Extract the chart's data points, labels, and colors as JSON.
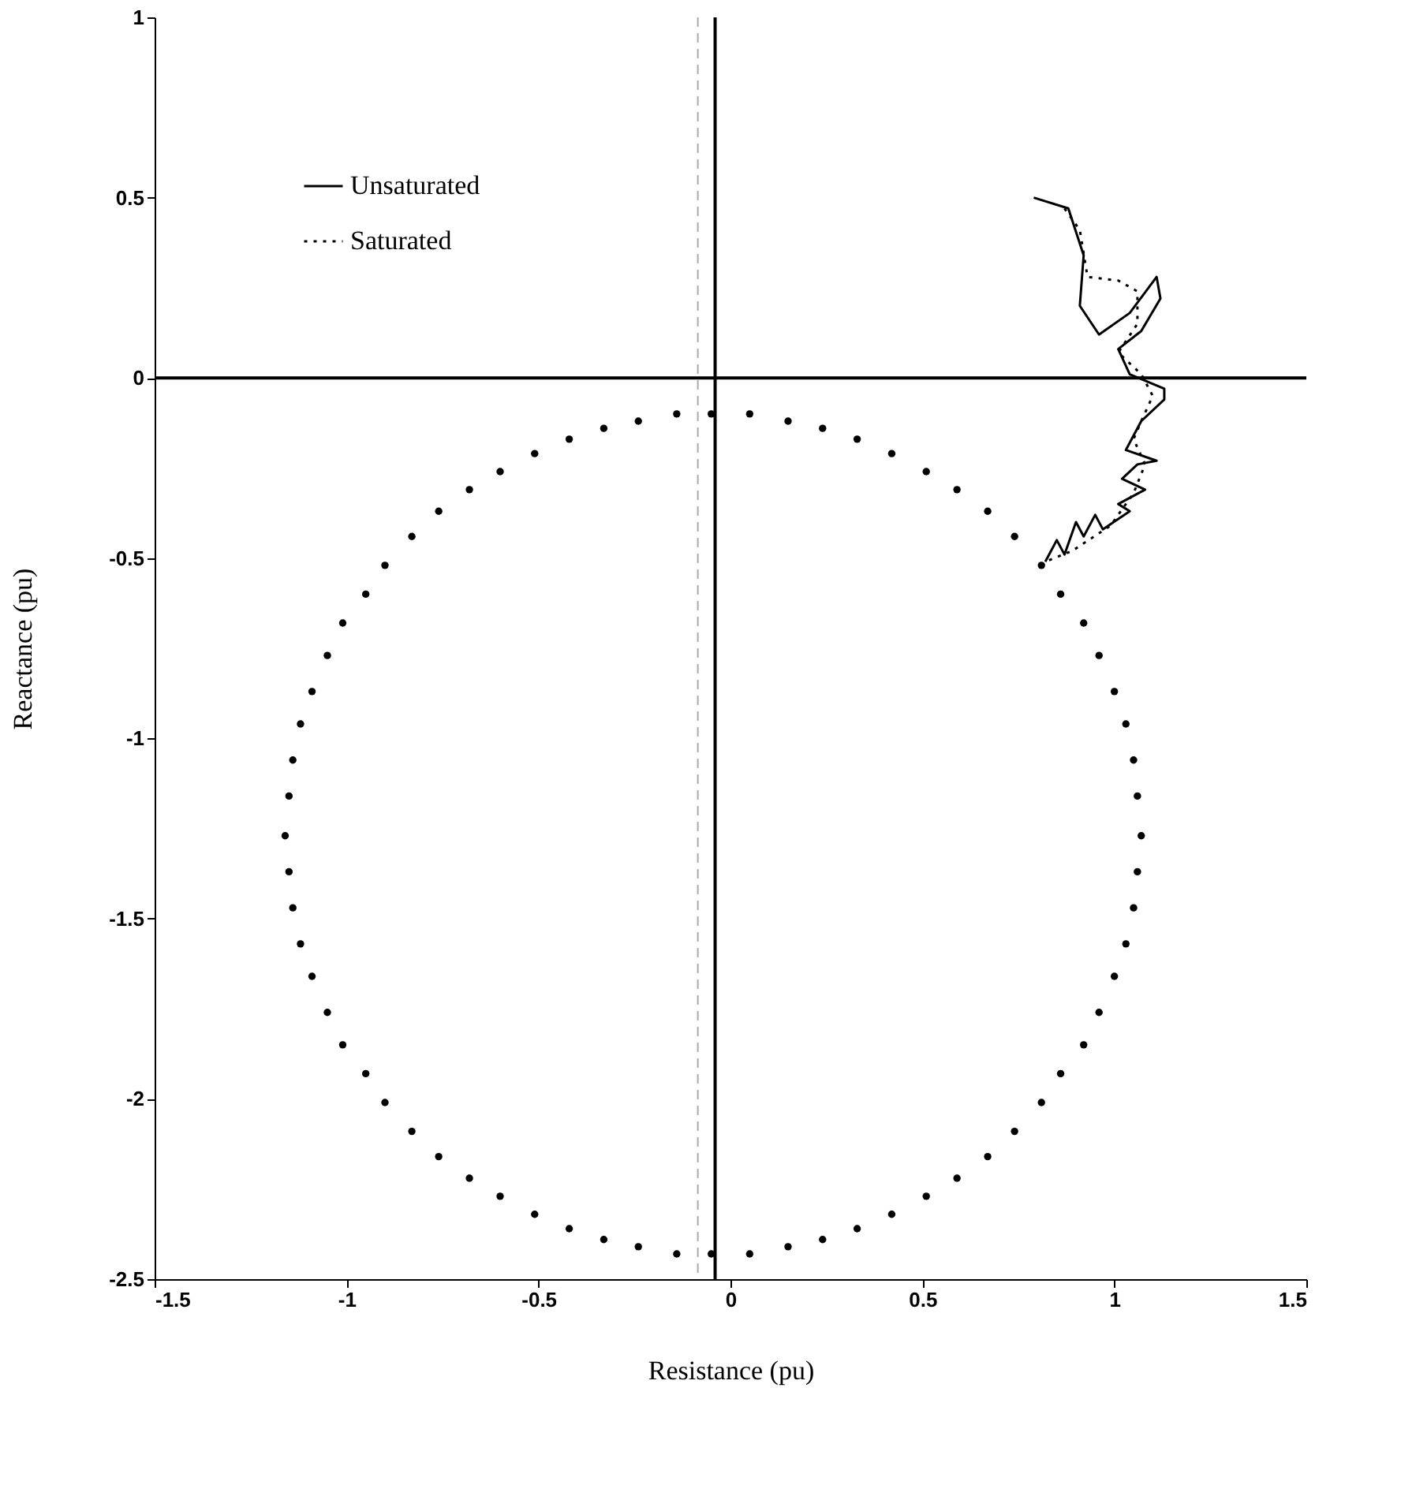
{
  "chart_data": {
    "type": "line",
    "xlabel": "Resistance (pu)",
    "ylabel": "Reactance (pu)",
    "xlim": [
      -1.5,
      1.5
    ],
    "ylim": [
      -2.5,
      1
    ],
    "xticks": [
      -1.5,
      -1,
      -0.5,
      0,
      0.5,
      1,
      1.5
    ],
    "yticks": [
      -2.5,
      -2,
      -1.5,
      -1,
      -0.5,
      0,
      0.5,
      1
    ],
    "grid": false,
    "legend": "top left",
    "series": [
      {
        "name": "Unsaturated",
        "color": "#000000",
        "line_style": "solid",
        "marker": "none",
        "x": [
          0.79,
          0.88,
          0.92,
          0.91,
          0.96,
          1.04,
          1.11,
          1.12,
          1.07,
          1.01,
          1.04,
          1.13,
          1.13,
          1.07,
          1.03,
          1.11,
          1.06,
          1.02,
          1.08,
          1.01,
          1.04,
          0.97,
          0.95,
          0.92,
          0.9,
          0.87,
          0.85,
          0.82
        ],
        "values": [
          0.5,
          0.47,
          0.34,
          0.2,
          0.12,
          0.18,
          0.28,
          0.22,
          0.13,
          0.08,
          0.01,
          -0.03,
          -0.06,
          -0.12,
          -0.2,
          -0.23,
          -0.24,
          -0.28,
          -0.31,
          -0.35,
          -0.37,
          -0.42,
          -0.38,
          -0.44,
          -0.4,
          -0.49,
          -0.45,
          -0.51
        ]
      },
      {
        "name": "Saturated",
        "color": "#000000",
        "line_style": "dotted",
        "marker": "none",
        "x": [
          0.87,
          0.91,
          0.93,
          1.01,
          1.06,
          1.06,
          1.01,
          1.07,
          1.1,
          1.07,
          1.05,
          1.08,
          1.05,
          0.99,
          0.89,
          0.82
        ],
        "values": [
          0.47,
          0.41,
          0.28,
          0.27,
          0.24,
          0.15,
          0.07,
          0.01,
          -0.05,
          -0.12,
          -0.17,
          -0.24,
          -0.32,
          -0.41,
          -0.48,
          -0.51
        ]
      },
      {
        "type": "scatter",
        "color": "#000000",
        "marker": "circle",
        "x": [
          1.07,
          1.06,
          1.05,
          1.03,
          1.0,
          0.96,
          0.92,
          0.86,
          0.81,
          0.74,
          0.67,
          0.59,
          0.51,
          0.42,
          0.33,
          0.24,
          0.15,
          0.05,
          -0.05,
          -0.14,
          -0.24,
          -0.33,
          -0.42,
          -0.51,
          -0.6,
          -0.68,
          -0.76,
          -0.83,
          -0.9,
          -0.95,
          -1.01,
          -1.05,
          -1.09,
          -1.12,
          -1.14,
          -1.15,
          -1.16,
          -1.15,
          -1.14,
          -1.12,
          -1.09,
          -1.05,
          -1.01,
          -0.95,
          -0.9,
          -0.83,
          -0.76,
          -0.68,
          -0.6,
          -0.51,
          -0.42,
          -0.33,
          -0.24,
          -0.14,
          -0.05,
          0.05,
          0.15,
          0.24,
          0.33,
          0.42,
          0.51,
          0.59,
          0.67,
          0.74,
          0.81,
          0.86,
          0.92,
          0.96,
          1.0,
          1.03,
          1.05,
          1.06
        ],
        "values": [
          -1.27,
          -1.16,
          -1.06,
          -0.96,
          -0.87,
          -0.77,
          -0.68,
          -0.6,
          -0.52,
          -0.44,
          -0.37,
          -0.31,
          -0.26,
          -0.21,
          -0.17,
          -0.14,
          -0.12,
          -0.1,
          -0.1,
          -0.1,
          -0.12,
          -0.14,
          -0.17,
          -0.21,
          -0.26,
          -0.31,
          -0.37,
          -0.44,
          -0.52,
          -0.6,
          -0.68,
          -0.77,
          -0.87,
          -0.96,
          -1.06,
          -1.16,
          -1.27,
          -1.37,
          -1.47,
          -1.57,
          -1.66,
          -1.76,
          -1.85,
          -1.93,
          -2.01,
          -2.09,
          -2.16,
          -2.22,
          -2.27,
          -2.32,
          -2.36,
          -2.39,
          -2.41,
          -2.43,
          -2.43,
          -2.43,
          -2.41,
          -2.39,
          -2.36,
          -2.32,
          -2.27,
          -2.22,
          -2.16,
          -2.09,
          -2.01,
          -1.93,
          -1.85,
          -1.76,
          -1.66,
          -1.57,
          -1.47,
          -1.37
        ]
      }
    ],
    "ref_lines": [
      {
        "axis": "x",
        "value": -0.04,
        "color": "#000000",
        "line_style": "solid"
      },
      {
        "axis": "y",
        "value": 0,
        "color": "#000000",
        "line_style": "solid"
      },
      {
        "axis": "x",
        "value": -0.085,
        "color": "#aaaaaa",
        "line_style": "dashed"
      }
    ]
  }
}
